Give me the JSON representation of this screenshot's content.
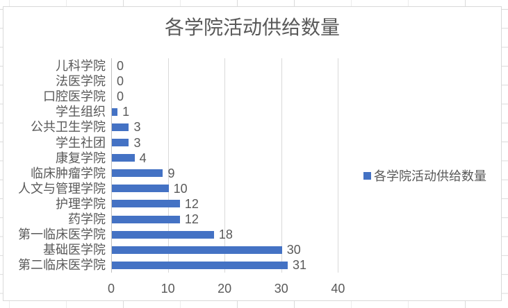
{
  "chart_data": {
    "type": "bar",
    "orientation": "horizontal",
    "title": "各学院活动供给数量",
    "categories": [
      "儿科学院",
      "法医学院",
      "口腔医学院",
      "学生组织",
      "公共卫生学院",
      "学生社团",
      "康复学院",
      "临床肿瘤学院",
      "人文与管理学院",
      "护理学院",
      "药学院",
      "第一临床医学院",
      "基础医学院",
      "第二临床医学院"
    ],
    "values": [
      0,
      0,
      0,
      1,
      3,
      3,
      4,
      9,
      10,
      12,
      12,
      18,
      30,
      31
    ],
    "x_ticks": [
      0,
      10,
      20,
      30,
      40
    ],
    "xlim": [
      0,
      45
    ],
    "data_labels_shown": true,
    "grid": "vertical-major",
    "legend": {
      "label": "各学院活动供给数量",
      "position": "right"
    },
    "colors": {
      "bar": "#4472c4",
      "gridline": "#d9d9d9",
      "axis_line": "#bfbfbf",
      "text": "#595959",
      "chart_border": "#d9d9d9"
    }
  }
}
